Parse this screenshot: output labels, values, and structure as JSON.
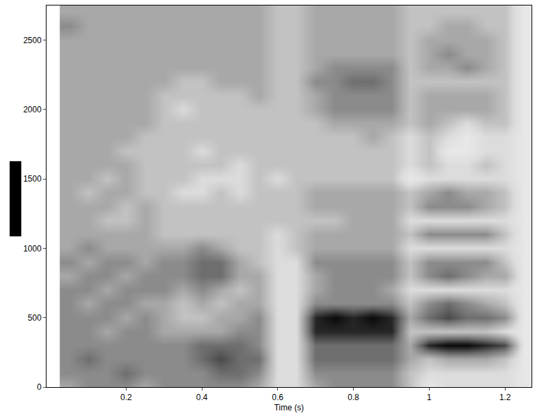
{
  "chart_data": {
    "type": "heatmap",
    "xlabel": "Time (s)",
    "x": [
      0.05,
      0.1,
      0.15,
      0.2,
      0.25,
      0.3,
      0.35,
      0.4,
      0.45,
      0.5,
      0.55,
      0.6,
      0.65,
      0.7,
      0.75,
      0.8,
      0.85,
      0.9,
      0.95,
      1.0,
      1.05,
      1.1,
      1.15,
      1.2,
      1.25
    ],
    "y": [
      0,
      100,
      200,
      300,
      400,
      500,
      600,
      700,
      800,
      900,
      1000,
      1100,
      1200,
      1300,
      1400,
      1500,
      1600,
      1700,
      1800,
      1900,
      2000,
      2100,
      2200,
      2300,
      2400,
      2500,
      2600,
      2700
    ],
    "z": [
      [
        5,
        6,
        6,
        6,
        5,
        6,
        6,
        6,
        6,
        6,
        5,
        3,
        3,
        5,
        6,
        6,
        6,
        6,
        4,
        2,
        3,
        3,
        3,
        3,
        2
      ],
      [
        6,
        6,
        6,
        7,
        6,
        6,
        6,
        6,
        7,
        7,
        6,
        3,
        3,
        6,
        6,
        6,
        6,
        6,
        4,
        3,
        3,
        3,
        3,
        3,
        2
      ],
      [
        6,
        7,
        6,
        6,
        6,
        6,
        6,
        7,
        8,
        7,
        7,
        3,
        3,
        7,
        7,
        7,
        7,
        7,
        5,
        4,
        5,
        5,
        5,
        4,
        2
      ],
      [
        6,
        6,
        6,
        6,
        6,
        6,
        6,
        7,
        7,
        7,
        6,
        3,
        3,
        7,
        7,
        7,
        7,
        7,
        5,
        9,
        10,
        10,
        9,
        8,
        2
      ],
      [
        6,
        6,
        5,
        6,
        6,
        5,
        5,
        5,
        5,
        6,
        6,
        3,
        3,
        9,
        9,
        9,
        9,
        9,
        4,
        4,
        4,
        4,
        4,
        3,
        2
      ],
      [
        6,
        6,
        6,
        5,
        6,
        5,
        4,
        4,
        5,
        5,
        6,
        3,
        3,
        9,
        10,
        9,
        10,
        9,
        5,
        7,
        8,
        7,
        7,
        6,
        2
      ],
      [
        6,
        5,
        6,
        6,
        5,
        5,
        4,
        5,
        4,
        5,
        5,
        3,
        3,
        6,
        6,
        6,
        6,
        6,
        4,
        6,
        7,
        6,
        5,
        4,
        2
      ],
      [
        6,
        6,
        5,
        6,
        6,
        6,
        5,
        6,
        5,
        4,
        5,
        3,
        3,
        5,
        6,
        6,
        6,
        5,
        3,
        3,
        3,
        3,
        3,
        3,
        2
      ],
      [
        5,
        6,
        6,
        5,
        6,
        6,
        6,
        7,
        7,
        5,
        5,
        3,
        3,
        5,
        6,
        6,
        6,
        6,
        4,
        6,
        7,
        6,
        5,
        5,
        2
      ],
      [
        6,
        5,
        6,
        6,
        5,
        6,
        6,
        7,
        7,
        5,
        4,
        3,
        3,
        6,
        6,
        6,
        6,
        6,
        4,
        6,
        6,
        6,
        6,
        4,
        2
      ],
      [
        5,
        6,
        5,
        5,
        5,
        5,
        5,
        6,
        5,
        4,
        4,
        3,
        4,
        5,
        5,
        5,
        5,
        5,
        3,
        3,
        3,
        3,
        3,
        3,
        2
      ],
      [
        5,
        5,
        5,
        5,
        5,
        4,
        4,
        4,
        4,
        4,
        4,
        3,
        4,
        5,
        5,
        5,
        5,
        5,
        4,
        6,
        6,
        6,
        6,
        4,
        2
      ],
      [
        5,
        5,
        4,
        4,
        5,
        4,
        4,
        4,
        4,
        4,
        4,
        4,
        4,
        4,
        4,
        5,
        5,
        5,
        3,
        3,
        3,
        3,
        3,
        3,
        2
      ],
      [
        5,
        5,
        5,
        4,
        5,
        4,
        4,
        4,
        4,
        4,
        4,
        4,
        4,
        5,
        5,
        5,
        5,
        5,
        4,
        6,
        6,
        6,
        5,
        4,
        2
      ],
      [
        5,
        4,
        5,
        5,
        4,
        4,
        3,
        3,
        4,
        3,
        4,
        4,
        4,
        5,
        5,
        5,
        5,
        5,
        4,
        5,
        6,
        5,
        5,
        4,
        2
      ],
      [
        5,
        5,
        4,
        5,
        4,
        4,
        4,
        3,
        3,
        3,
        4,
        3,
        4,
        4,
        4,
        4,
        4,
        4,
        2,
        3,
        3,
        3,
        3,
        3,
        2
      ],
      [
        5,
        5,
        5,
        5,
        4,
        4,
        4,
        4,
        4,
        3,
        4,
        4,
        4,
        4,
        4,
        4,
        4,
        4,
        3,
        4,
        3,
        3,
        4,
        3,
        2
      ],
      [
        5,
        5,
        5,
        4,
        4,
        4,
        4,
        3,
        4,
        4,
        4,
        4,
        4,
        4,
        4,
        4,
        4,
        4,
        3,
        4,
        2,
        2,
        3,
        3,
        2
      ],
      [
        5,
        5,
        5,
        5,
        4,
        4,
        4,
        4,
        4,
        4,
        4,
        4,
        4,
        4,
        4,
        4,
        5,
        4,
        3,
        4,
        3,
        2,
        3,
        3,
        2
      ],
      [
        5,
        5,
        5,
        5,
        5,
        4,
        4,
        4,
        4,
        4,
        4,
        4,
        4,
        4,
        5,
        5,
        5,
        5,
        4,
        5,
        4,
        3,
        4,
        4,
        2
      ],
      [
        5,
        5,
        5,
        5,
        5,
        4,
        3,
        4,
        4,
        4,
        4,
        4,
        4,
        5,
        6,
        6,
        6,
        6,
        4,
        5,
        5,
        5,
        5,
        4,
        2
      ],
      [
        5,
        5,
        5,
        5,
        5,
        4,
        4,
        4,
        4,
        4,
        5,
        4,
        4,
        5,
        6,
        6,
        6,
        6,
        4,
        5,
        5,
        5,
        5,
        4,
        2
      ],
      [
        5,
        5,
        5,
        5,
        5,
        5,
        4,
        4,
        5,
        5,
        5,
        4,
        4,
        6,
        6,
        7,
        7,
        6,
        4,
        4,
        4,
        4,
        4,
        4,
        2
      ],
      [
        5,
        5,
        5,
        5,
        5,
        5,
        5,
        5,
        5,
        5,
        5,
        4,
        4,
        5,
        6,
        6,
        6,
        6,
        4,
        5,
        5,
        6,
        5,
        4,
        2
      ],
      [
        5,
        5,
        5,
        5,
        5,
        5,
        5,
        5,
        5,
        5,
        5,
        4,
        4,
        5,
        5,
        5,
        5,
        5,
        4,
        5,
        6,
        5,
        5,
        4,
        2
      ],
      [
        5,
        5,
        5,
        5,
        5,
        5,
        5,
        5,
        5,
        5,
        5,
        4,
        4,
        5,
        5,
        5,
        5,
        5,
        4,
        5,
        5,
        5,
        5,
        4,
        2
      ],
      [
        6,
        5,
        5,
        5,
        5,
        5,
        5,
        5,
        5,
        5,
        5,
        4,
        4,
        5,
        5,
        5,
        5,
        5,
        4,
        4,
        5,
        5,
        4,
        4,
        2
      ],
      [
        5,
        5,
        5,
        5,
        5,
        5,
        5,
        5,
        5,
        5,
        5,
        4,
        4,
        5,
        5,
        5,
        5,
        5,
        4,
        4,
        4,
        4,
        4,
        4,
        2
      ]
    ],
    "zlim": [
      0,
      10
    ],
    "xlim": [
      -0.01,
      1.27
    ],
    "ylim": [
      0,
      2750
    ],
    "xticks": [
      0.2,
      0.4,
      0.6,
      0.8,
      1,
      1.2
    ],
    "yticks": [
      0,
      500,
      1000,
      1500,
      2000,
      2500
    ],
    "grid": false
  }
}
